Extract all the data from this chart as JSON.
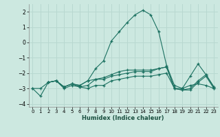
{
  "bg_color": "#cce8e0",
  "grid_color": "#b8d8d0",
  "line_color": "#1a7060",
  "series": [
    {
      "x": [
        0,
        1,
        2,
        3,
        4,
        5,
        6,
        7,
        8,
        9,
        10,
        11,
        12,
        13,
        14,
        15,
        16,
        17,
        18,
        19,
        20,
        21,
        22,
        23
      ],
      "y": [
        -3.0,
        -3.5,
        -2.6,
        -2.5,
        -2.9,
        -2.7,
        -2.8,
        -2.5,
        -1.7,
        -1.2,
        0.1,
        0.7,
        1.3,
        1.8,
        2.1,
        1.8,
        0.7,
        -1.5,
        -2.8,
        -3.0,
        -2.2,
        -1.4,
        -2.1,
        -2.9
      ]
    },
    {
      "x": [
        0,
        1,
        2,
        3,
        4,
        5,
        6,
        7,
        8,
        9,
        10,
        11,
        12,
        13,
        14,
        15,
        16,
        17,
        18,
        19,
        20,
        21,
        22,
        23
      ],
      "y": [
        -3.0,
        -3.0,
        -2.6,
        -2.5,
        -3.0,
        -2.8,
        -2.9,
        -2.8,
        -2.4,
        -2.3,
        -2.1,
        -1.9,
        -1.8,
        -1.8,
        -1.8,
        -1.8,
        -1.7,
        -1.6,
        -3.0,
        -3.0,
        -2.8,
        -2.7,
        -2.8,
        -3.0
      ]
    },
    {
      "x": [
        2,
        3,
        4,
        5,
        6,
        7,
        8,
        9,
        10,
        11,
        12,
        13,
        14,
        15,
        16,
        17,
        18,
        19,
        20,
        21,
        22,
        23
      ],
      "y": [
        -2.6,
        -2.5,
        -2.9,
        -2.7,
        -2.8,
        -2.5,
        -2.4,
        -2.4,
        -2.2,
        -2.1,
        -2.0,
        -1.9,
        -1.9,
        -1.9,
        -1.7,
        -1.6,
        -3.0,
        -3.1,
        -3.0,
        -2.5,
        -2.1,
        -2.9
      ]
    },
    {
      "x": [
        2,
        3,
        4,
        5,
        6,
        7,
        8,
        9,
        10,
        11,
        12,
        13,
        14,
        15,
        16,
        17,
        18,
        19,
        20,
        21,
        22,
        23
      ],
      "y": [
        -2.6,
        -2.5,
        -2.9,
        -2.7,
        -2.9,
        -3.0,
        -2.8,
        -2.8,
        -2.5,
        -2.4,
        -2.3,
        -2.2,
        -2.2,
        -2.2,
        -2.1,
        -2.0,
        -3.0,
        -3.1,
        -3.1,
        -2.6,
        -2.2,
        -3.0
      ]
    }
  ],
  "xlabel": "Humidex (Indice chaleur)",
  "xlim": [
    -0.5,
    23.5
  ],
  "ylim": [
    -4.2,
    2.5
  ],
  "yticks": [
    -4,
    -3,
    -2,
    -1,
    0,
    1,
    2
  ],
  "xticks": [
    0,
    1,
    2,
    3,
    4,
    5,
    6,
    7,
    8,
    9,
    10,
    11,
    12,
    13,
    14,
    15,
    16,
    17,
    18,
    19,
    20,
    21,
    22,
    23
  ]
}
